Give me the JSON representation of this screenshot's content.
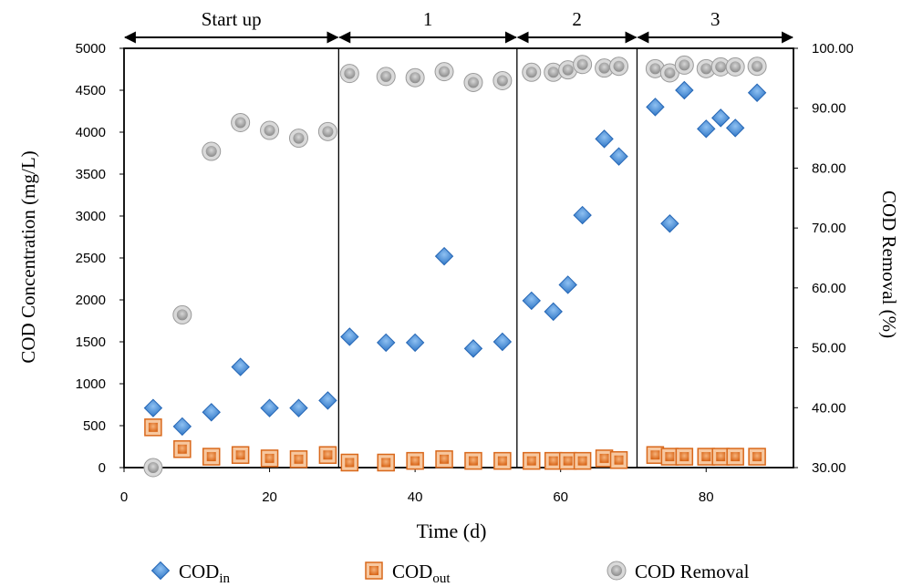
{
  "chart_data": {
    "type": "scatter",
    "xlabel": "Time (d)",
    "ylabel_left": "COD Concentration (mg/L)",
    "ylabel_right": "COD Removal (%)",
    "xlim": [
      0,
      92
    ],
    "x_ticks": [
      0,
      20,
      40,
      60,
      80
    ],
    "ylim_left": [
      0,
      5000
    ],
    "y_ticks_left": [
      0,
      500,
      1000,
      1500,
      2000,
      2500,
      3000,
      3500,
      4000,
      4500,
      5000
    ],
    "ylim_right": [
      30,
      100
    ],
    "y_ticks_right": [
      "30.00",
      "40.00",
      "50.00",
      "60.00",
      "70.00",
      "80.00",
      "90.00",
      "100.00"
    ],
    "phases": [
      {
        "label": "Start up",
        "start": 0,
        "end": 29.5
      },
      {
        "label": "1",
        "start": 29.5,
        "end": 54
      },
      {
        "label": "2",
        "start": 54,
        "end": 70.5
      },
      {
        "label": "3",
        "start": 70.5,
        "end": 92
      }
    ],
    "grid": false,
    "legend_position": "bottom",
    "series": [
      {
        "name": "COD",
        "subscript": "in",
        "axis": "left",
        "marker": "diamond",
        "color": "#3f87d6",
        "x": [
          4,
          8,
          12,
          16,
          20,
          24,
          28,
          31,
          36,
          40,
          44,
          48,
          52,
          56,
          59,
          61,
          63,
          66,
          68,
          73,
          75,
          77,
          80,
          82,
          84,
          87
        ],
        "y": [
          710,
          490,
          660,
          1200,
          710,
          710,
          800,
          1560,
          1490,
          1490,
          2520,
          1420,
          1500,
          1990,
          1860,
          2180,
          3010,
          3920,
          3710,
          4300,
          2910,
          4500,
          4040,
          4170,
          4050,
          4470
        ]
      },
      {
        "name": "COD",
        "subscript": "out",
        "axis": "left",
        "marker": "square",
        "color": "#e8822e",
        "x": [
          4,
          8,
          12,
          16,
          20,
          24,
          28,
          31,
          36,
          40,
          44,
          48,
          52,
          56,
          59,
          61,
          63,
          66,
          68,
          73,
          75,
          77,
          80,
          82,
          84,
          87
        ],
        "y": [
          480,
          220,
          130,
          150,
          110,
          100,
          150,
          60,
          60,
          80,
          100,
          80,
          80,
          80,
          80,
          80,
          80,
          110,
          90,
          150,
          130,
          130,
          130,
          130,
          130,
          130
        ]
      },
      {
        "name": "COD Removal",
        "axis": "right",
        "marker": "circle",
        "color": "#999999",
        "x": [
          4,
          8,
          12,
          16,
          20,
          24,
          28,
          31,
          36,
          40,
          44,
          48,
          52,
          56,
          59,
          61,
          63,
          66,
          68,
          73,
          75,
          77,
          80,
          82,
          84,
          87
        ],
        "y": [
          30.0,
          55.5,
          82.8,
          87.6,
          86.3,
          85.0,
          86.1,
          95.8,
          95.3,
          95.1,
          96.1,
          94.3,
          94.6,
          96.0,
          96.0,
          96.4,
          97.3,
          96.7,
          97.0,
          96.6,
          95.9,
          97.2,
          96.6,
          96.9,
          96.9,
          97.0
        ]
      }
    ],
    "legend": [
      {
        "label": "COD",
        "subscript": "in"
      },
      {
        "label": "COD",
        "subscript": "out"
      },
      {
        "label": "COD Removal",
        "subscript": ""
      }
    ]
  }
}
